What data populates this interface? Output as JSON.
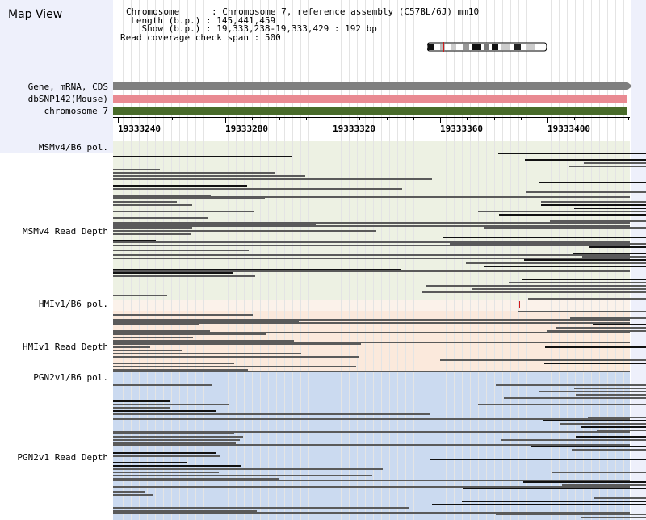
{
  "app_title": "Map View",
  "info": {
    "chromosome_key": "Chromosome",
    "chromosome_value": "Chromosome 7, reference assembly (C57BL/6J) mm10",
    "length_key": "Length (b.p.)",
    "length_value": "145,441,459",
    "show_key": "Show (b.p.)",
    "show_value": "19,333,238-19,333,429 : 192 bp",
    "coverage_key": "Read coverage check span",
    "coverage_value": "500"
  },
  "tracks": {
    "gene": "Gene, mRNA, CDS",
    "dbsnp": "dbSNP142(Mouse)",
    "chromosome": "chromosome 7"
  },
  "ruler": {
    "ticks": [
      "19333240",
      "19333280",
      "19333320",
      "19333360",
      "19333400"
    ]
  },
  "sections": {
    "msm_pol": "MSMv4/B6 pol.",
    "msm_depth": "MSMv4 Read Depth",
    "hmi_pol": "HMIv1/B6 pol.",
    "hmi_depth": "HMIv1 Read Depth",
    "pgn_pol": "PGN2v1/B6 pol.",
    "pgn_depth": "PGN2v1 Read Depth"
  },
  "colors": {
    "gene_track": "#7f7f7f",
    "dbsnp_track": "#e98a92",
    "chromosome_track": "#486b2a",
    "msm_bg": "#edf1e3",
    "hmi_bg": "#fbe9dc",
    "pgn_bg": "#cbdaf0",
    "sidebar_bg": "#eef0fb",
    "read_gray": "#5a5a5a",
    "read_black": "#111111",
    "snp_mark": "#d11a1a"
  },
  "icons": {
    "ideogram": "chromosome-ideogram-icon",
    "gene_arrow": "arrow-right-icon"
  }
}
